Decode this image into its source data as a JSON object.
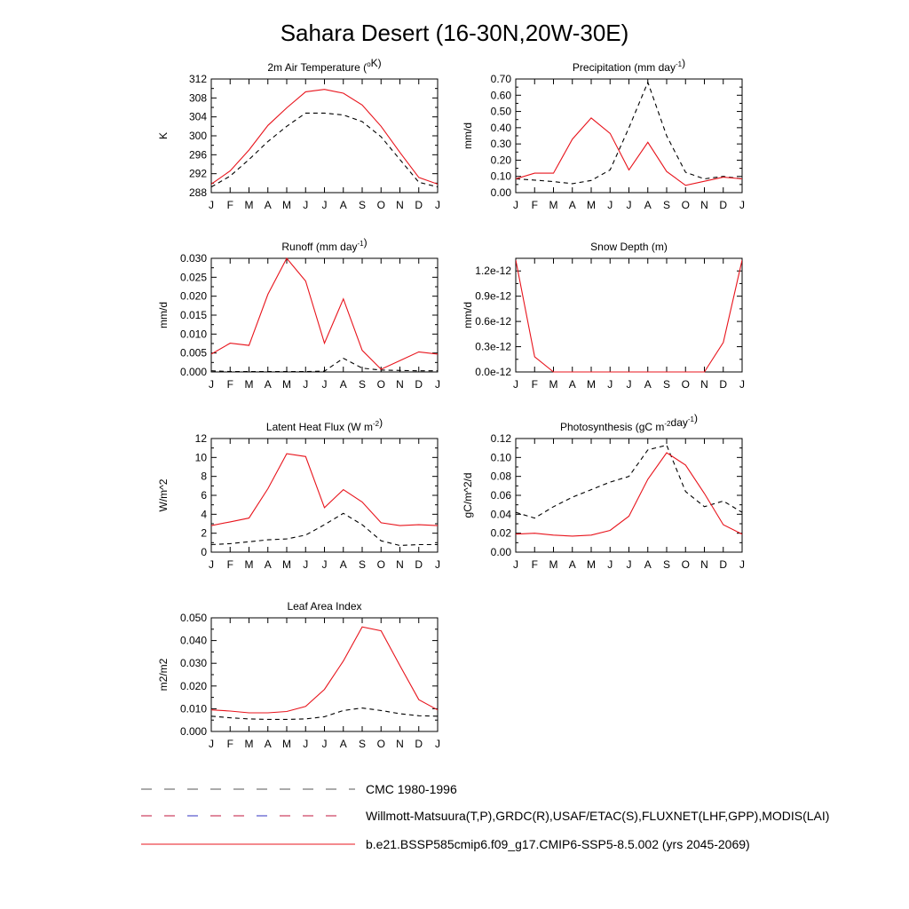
{
  "page_title": "Sahara Desert (16-30N,20W-30E)",
  "months": [
    "J",
    "F",
    "M",
    "A",
    "M",
    "J",
    "J",
    "A",
    "S",
    "O",
    "N",
    "D",
    "J"
  ],
  "colors": {
    "model": "#e8141c",
    "obs": "#000000"
  },
  "legend": [
    {
      "label": "CMC 1980-1996",
      "style": "dashed-gray"
    },
    {
      "label": "Willmott-Matsuura(T,P),GRDC(R),USAF/ETAC(S),FLUXNET(LHF,GPP),MODIS(LAI)",
      "style": "dashed-multicolor"
    },
    {
      "label": "b.e21.BSSP585cmip6.f09_g17.CMIP6-SSP5-8.5.002 (yrs 2045-2069)",
      "style": "solid-red"
    }
  ],
  "chart_data": [
    {
      "type": "line",
      "title": "2m Air Temperature (°K)",
      "title_parts": [
        {
          "t": "2m Air Temperature ("
        },
        {
          "t": "o",
          "sup": true
        },
        {
          "t": "K)"
        }
      ],
      "ylabel": "K",
      "ylim": [
        288,
        312
      ],
      "yticks": [
        288,
        292,
        296,
        300,
        304,
        308,
        312
      ],
      "ytick_labels": [
        "288",
        "292",
        "296",
        "300",
        "304",
        "308",
        "312"
      ],
      "series": [
        {
          "style": "obs",
          "values": [
            289.2,
            291.5,
            295.0,
            298.8,
            302.0,
            304.8,
            304.8,
            304.4,
            303.0,
            299.8,
            295.0,
            290.2,
            289.2
          ]
        },
        {
          "style": "model",
          "values": [
            289.8,
            292.6,
            297.0,
            302.2,
            305.9,
            309.3,
            309.8,
            309.0,
            306.5,
            302.0,
            296.5,
            291.2,
            289.8
          ]
        }
      ]
    },
    {
      "type": "line",
      "title": "Precipitation (mm day-1)",
      "title_parts": [
        {
          "t": "Precipitation (mm day"
        },
        {
          "t": "-1",
          "sup": true
        },
        {
          "t": ")"
        }
      ],
      "ylabel": "mm/d",
      "ylim": [
        0,
        0.7
      ],
      "yticks": [
        0,
        0.1,
        0.2,
        0.3,
        0.4,
        0.5,
        0.6,
        0.7
      ],
      "ytick_labels": [
        "0.00",
        "0.10",
        "0.20",
        "0.30",
        "0.40",
        "0.50",
        "0.60",
        "0.70"
      ],
      "series": [
        {
          "style": "obs",
          "values": [
            0.085,
            0.077,
            0.068,
            0.055,
            0.075,
            0.14,
            0.4,
            0.68,
            0.35,
            0.125,
            0.085,
            0.1,
            0.085
          ]
        },
        {
          "style": "model",
          "values": [
            0.085,
            0.12,
            0.12,
            0.33,
            0.46,
            0.365,
            0.14,
            0.31,
            0.13,
            0.045,
            0.07,
            0.095,
            0.085
          ]
        }
      ]
    },
    {
      "type": "line",
      "title": "Runoff (mm day-1)",
      "title_parts": [
        {
          "t": "Runoff (mm day"
        },
        {
          "t": "-1",
          "sup": true
        },
        {
          "t": ")"
        }
      ],
      "ylabel": "mm/d",
      "ylim": [
        0,
        0.03
      ],
      "yticks": [
        0,
        0.005,
        0.01,
        0.015,
        0.02,
        0.025,
        0.03
      ],
      "ytick_labels": [
        "0.000",
        "0.005",
        "0.010",
        "0.015",
        "0.020",
        "0.025",
        "0.030"
      ],
      "series": [
        {
          "style": "obs",
          "values": [
            0.0003,
            0.0001,
            0.0001,
            0.0001,
            0.0001,
            0.0001,
            0.0002,
            0.0036,
            0.001,
            0.0005,
            0.0004,
            0.0003,
            0.0003
          ]
        },
        {
          "style": "model",
          "values": [
            0.0047,
            0.0076,
            0.007,
            0.0205,
            0.03,
            0.024,
            0.0076,
            0.0193,
            0.0057,
            0.0007,
            0.003,
            0.0053,
            0.0047
          ]
        }
      ]
    },
    {
      "type": "line",
      "title": "Snow Depth (m)",
      "title_parts": [
        {
          "t": "Snow Depth (m)"
        }
      ],
      "ylabel": "mm/d",
      "ylim": [
        0,
        1.35e-12
      ],
      "yticks": [
        0,
        3e-13,
        6e-13,
        9e-13,
        1.2e-12
      ],
      "ytick_labels": [
        "0.0e-12",
        "0.3e-12",
        "0.6e-12",
        "0.9e-12",
        "1.2e-12"
      ],
      "series": [
        {
          "style": "obs",
          "values": [
            0,
            0,
            0,
            0,
            0,
            0,
            0,
            0,
            0,
            0,
            0,
            0,
            0
          ]
        },
        {
          "style": "model",
          "values": [
            1.33e-12,
            1.8e-13,
            0,
            0,
            0,
            0,
            0,
            0,
            0,
            0,
            0,
            3.5e-13,
            1.33e-12
          ]
        }
      ]
    },
    {
      "type": "line",
      "title": "Latent Heat Flux (W m-2)",
      "title_parts": [
        {
          "t": "Latent Heat Flux (W m"
        },
        {
          "t": "-2",
          "sup": true
        },
        {
          "t": ")"
        }
      ],
      "ylabel": "W/m^2",
      "ylim": [
        0,
        12
      ],
      "yticks": [
        0,
        2,
        4,
        6,
        8,
        10,
        12
      ],
      "ytick_labels": [
        "0",
        "2",
        "4",
        "6",
        "8",
        "10",
        "12"
      ],
      "series": [
        {
          "style": "obs",
          "values": [
            0.8,
            0.9,
            1.1,
            1.3,
            1.4,
            1.8,
            2.9,
            4.1,
            2.9,
            1.2,
            0.7,
            0.8,
            0.8
          ]
        },
        {
          "style": "model",
          "values": [
            2.8,
            3.2,
            3.6,
            6.7,
            10.4,
            10.1,
            4.7,
            6.6,
            5.3,
            3.1,
            2.8,
            2.9,
            2.8
          ]
        }
      ]
    },
    {
      "type": "line",
      "title": "Photosynthesis (gC m-2day-1)",
      "title_parts": [
        {
          "t": "Photosynthesis (gC m"
        },
        {
          "t": "-2",
          "sup": true
        },
        {
          "t": "day"
        },
        {
          "t": "-1",
          "sup": true
        },
        {
          "t": ")"
        }
      ],
      "ylabel": "gC/m^2/d",
      "ylim": [
        0,
        0.12
      ],
      "yticks": [
        0,
        0.02,
        0.04,
        0.06,
        0.08,
        0.1,
        0.12
      ],
      "ytick_labels": [
        "0.00",
        "0.02",
        "0.04",
        "0.06",
        "0.08",
        "0.10",
        "0.12"
      ],
      "series": [
        {
          "style": "obs",
          "values": [
            0.042,
            0.036,
            0.048,
            0.058,
            0.066,
            0.074,
            0.08,
            0.108,
            0.113,
            0.064,
            0.048,
            0.054,
            0.042
          ]
        },
        {
          "style": "model",
          "values": [
            0.019,
            0.02,
            0.018,
            0.017,
            0.018,
            0.023,
            0.038,
            0.077,
            0.105,
            0.092,
            0.062,
            0.029,
            0.019
          ]
        }
      ]
    },
    {
      "type": "line",
      "title": "Leaf Area Index",
      "title_parts": [
        {
          "t": "Leaf Area Index"
        }
      ],
      "ylabel": "m2/m2",
      "ylim": [
        0,
        0.05
      ],
      "yticks": [
        0,
        0.01,
        0.02,
        0.03,
        0.04,
        0.05
      ],
      "ytick_labels": [
        "0.000",
        "0.010",
        "0.020",
        "0.030",
        "0.040",
        "0.050"
      ],
      "series": [
        {
          "style": "obs",
          "values": [
            0.0067,
            0.006,
            0.0055,
            0.0053,
            0.0053,
            0.0055,
            0.0065,
            0.0092,
            0.0103,
            0.0092,
            0.0078,
            0.0069,
            0.0067
          ]
        },
        {
          "style": "model",
          "values": [
            0.0095,
            0.009,
            0.0082,
            0.0082,
            0.0088,
            0.011,
            0.0185,
            0.031,
            0.046,
            0.0443,
            0.029,
            0.014,
            0.0095
          ]
        }
      ]
    }
  ]
}
